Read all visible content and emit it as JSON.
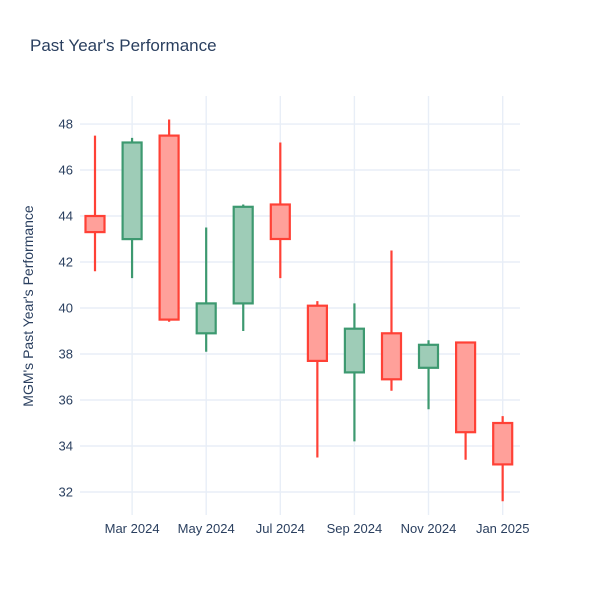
{
  "title": "Past Year's Performance",
  "y_axis": {
    "label": "MGM's Past Year's Performance",
    "ticks": [
      32,
      34,
      36,
      38,
      40,
      42,
      44,
      46,
      48
    ]
  },
  "x_axis": {
    "tick_labels": [
      "Mar 2024",
      "May 2024",
      "Jul 2024",
      "Sep 2024",
      "Nov 2024",
      "Jan 2025"
    ]
  },
  "colors": {
    "text": "#2a3f5f",
    "grid": "#e8eef7",
    "background": "#ffffff",
    "increasing_line": "#3D9970",
    "increasing_fill": "#9ECCB7",
    "decreasing_line": "#FF4136",
    "decreasing_fill": "#FFA09A"
  },
  "chart_data": {
    "type": "candlestick",
    "title": "Past Year's Performance",
    "ylabel": "MGM's Past Year's Performance",
    "xlabel": "",
    "grid": true,
    "legend": false,
    "ylim": [
      31.0,
      49.22
    ],
    "y_ticks": [
      32,
      34,
      36,
      38,
      40,
      42,
      44,
      46,
      48
    ],
    "x": [
      "Feb 2024",
      "Mar 2024",
      "Apr 2024",
      "May 2024",
      "Jun 2024",
      "Jul 2024",
      "Aug 2024",
      "Sep 2024",
      "Oct 2024",
      "Nov 2024",
      "Dec 2024",
      "Jan 2025"
    ],
    "x_tick_labels": [
      "Mar 2024",
      "May 2024",
      "Jul 2024",
      "Sep 2024",
      "Nov 2024",
      "Jan 2025"
    ],
    "x_tick_indices": [
      1,
      3,
      5,
      7,
      9,
      11
    ],
    "series": [
      {
        "month": "Feb 2024",
        "open": 44.0,
        "high": 47.5,
        "low": 41.6,
        "close": 43.3,
        "direction": "decreasing"
      },
      {
        "month": "Mar 2024",
        "open": 43.0,
        "high": 47.4,
        "low": 41.3,
        "close": 47.2,
        "direction": "increasing"
      },
      {
        "month": "Apr 2024",
        "open": 47.5,
        "high": 48.2,
        "low": 39.4,
        "close": 39.5,
        "direction": "decreasing"
      },
      {
        "month": "May 2024",
        "open": 38.9,
        "high": 43.5,
        "low": 38.1,
        "close": 40.2,
        "direction": "increasing"
      },
      {
        "month": "Jun 2024",
        "open": 40.2,
        "high": 44.5,
        "low": 39.0,
        "close": 44.4,
        "direction": "increasing"
      },
      {
        "month": "Jul 2024",
        "open": 44.5,
        "high": 47.2,
        "low": 41.3,
        "close": 43.0,
        "direction": "decreasing"
      },
      {
        "month": "Aug 2024",
        "open": 40.1,
        "high": 40.3,
        "low": 33.5,
        "close": 37.7,
        "direction": "decreasing"
      },
      {
        "month": "Sep 2024",
        "open": 37.2,
        "high": 40.2,
        "low": 34.2,
        "close": 39.1,
        "direction": "increasing"
      },
      {
        "month": "Oct 2024",
        "open": 38.9,
        "high": 42.5,
        "low": 36.4,
        "close": 36.9,
        "direction": "decreasing"
      },
      {
        "month": "Nov 2024",
        "open": 37.4,
        "high": 38.6,
        "low": 35.6,
        "close": 38.4,
        "direction": "increasing"
      },
      {
        "month": "Dec 2024",
        "open": 38.5,
        "high": 38.5,
        "low": 33.4,
        "close": 34.6,
        "direction": "decreasing"
      },
      {
        "month": "Jan 2025",
        "open": 35.0,
        "high": 35.3,
        "low": 31.6,
        "close": 33.2,
        "direction": "decreasing"
      }
    ]
  }
}
